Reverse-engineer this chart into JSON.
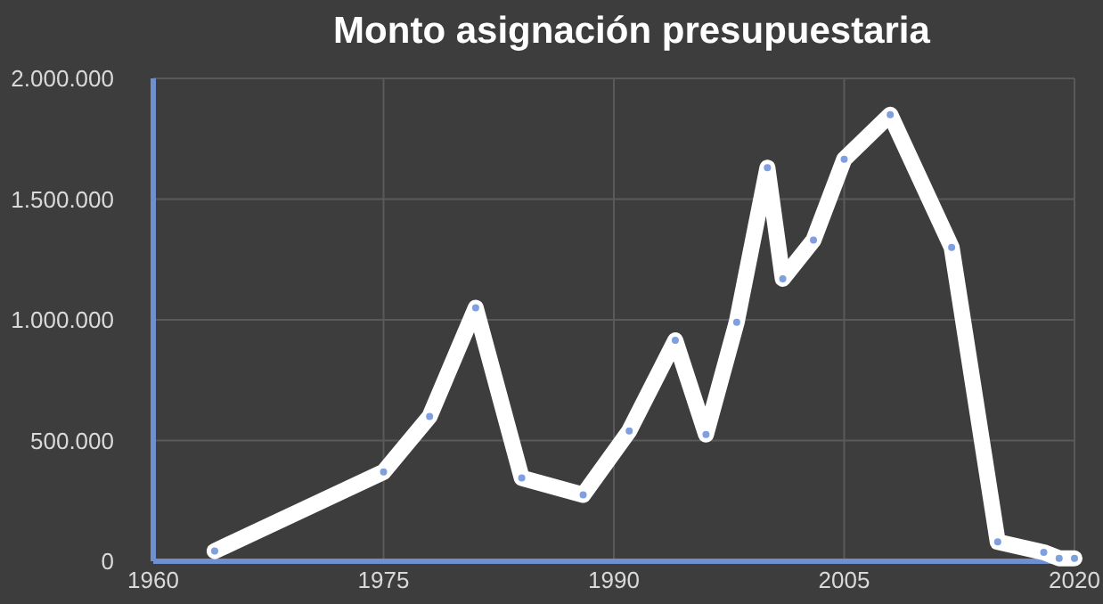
{
  "chart_data": {
    "type": "line",
    "title": "Monto asignación presupuestaria",
    "x": [
      1964,
      1975,
      1978,
      1981,
      1984,
      1988,
      1991,
      1994,
      1996,
      1998,
      2000,
      2001,
      2003,
      2005,
      2008,
      2012,
      2015,
      2018,
      2019,
      2020
    ],
    "series": [
      {
        "color": "#ffffff",
        "values": [
          42000,
          370000,
          600000,
          1050000,
          345000,
          275000,
          540000,
          915000,
          525000,
          990000,
          1630000,
          1170000,
          1330000,
          1665000,
          1850000,
          1300000,
          80000,
          37000,
          12000,
          12000
        ]
      }
    ],
    "xlim": [
      1960,
      2020
    ],
    "xticks": [
      1960,
      1975,
      1990,
      2005,
      2020
    ],
    "ylim": [
      0,
      2000000
    ],
    "yticks": [
      {
        "value": 0,
        "label": "0"
      },
      {
        "value": 500000,
        "label": "500.000"
      },
      {
        "value": 1000000,
        "label": "1.000.000"
      },
      {
        "value": 1500000,
        "label": "1.500.000"
      },
      {
        "value": 2000000,
        "label": "2.000.000"
      }
    ],
    "grid": true,
    "marker": "circle",
    "line_style": "solid"
  }
}
